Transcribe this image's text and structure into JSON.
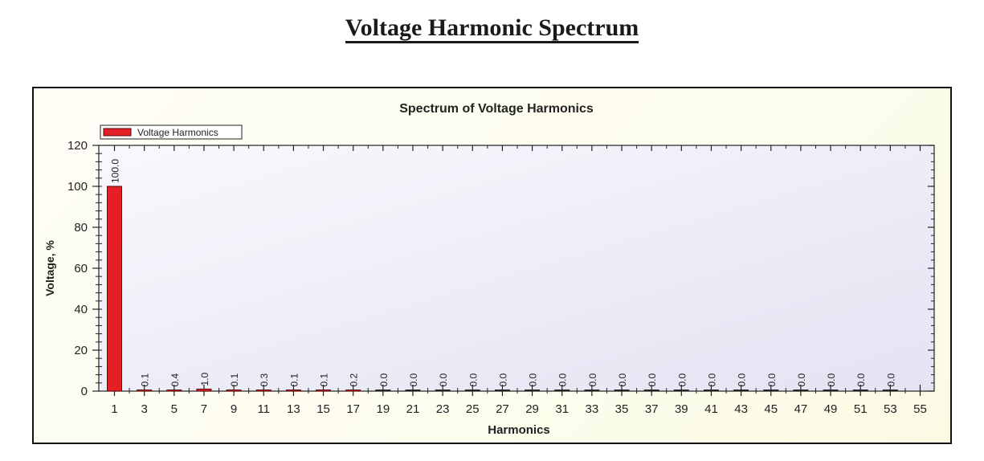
{
  "page": {
    "title": "Voltage Harmonic Spectrum"
  },
  "colors": {
    "bar_fill": "#e41f26",
    "bar_stroke": "#5a0a0a",
    "plot_bg_top": "#f7f7fc",
    "plot_bg_bottom": "#e4e4f4",
    "frame_bg": "#fdfdf0",
    "axis": "#222222",
    "text": "#222222"
  },
  "chart_data": {
    "type": "bar",
    "title": "Spectrum of Voltage Harmonics",
    "xlabel": "Harmonics",
    "ylabel": "Voltage, %",
    "ylim": [
      0,
      120
    ],
    "yticks": [
      0,
      20,
      40,
      60,
      80,
      100,
      120
    ],
    "xticks": [
      1,
      3,
      5,
      7,
      9,
      11,
      13,
      15,
      17,
      19,
      21,
      23,
      25,
      27,
      29,
      31,
      33,
      35,
      37,
      39,
      41,
      43,
      45,
      47,
      49,
      51,
      53,
      55
    ],
    "legend": {
      "position": "top-left",
      "entries": [
        "Voltage Harmonics"
      ]
    },
    "grid": false,
    "series": [
      {
        "name": "Voltage Harmonics",
        "categories": [
          1,
          3,
          5,
          7,
          9,
          11,
          13,
          15,
          17,
          19,
          21,
          23,
          25,
          27,
          29,
          31,
          33,
          35,
          37,
          39,
          41,
          43,
          45,
          47,
          49,
          51,
          53
        ],
        "values": [
          100.0,
          0.1,
          0.4,
          1.0,
          0.1,
          0.3,
          0.1,
          0.1,
          0.2,
          0.0,
          0.0,
          0.0,
          0.0,
          0.0,
          0.0,
          0.0,
          0.0,
          0.0,
          0.0,
          0.0,
          0.0,
          0.0,
          0.0,
          0.0,
          0.0,
          0.0,
          0.0
        ],
        "labels": [
          "100.0",
          "0.1",
          "0.4",
          "1.0",
          "0.1",
          "0.3",
          "0.1",
          "0.1",
          "0.2",
          "0.0",
          "0.0",
          "0.0",
          "0.0",
          "0.0",
          "0.0",
          "0.0",
          "0.0",
          "0.0",
          "0.0",
          "0.0",
          "0.0",
          "0.0",
          "0.0",
          "0.0",
          "0.0",
          "0.0",
          "0.0"
        ]
      }
    ]
  }
}
